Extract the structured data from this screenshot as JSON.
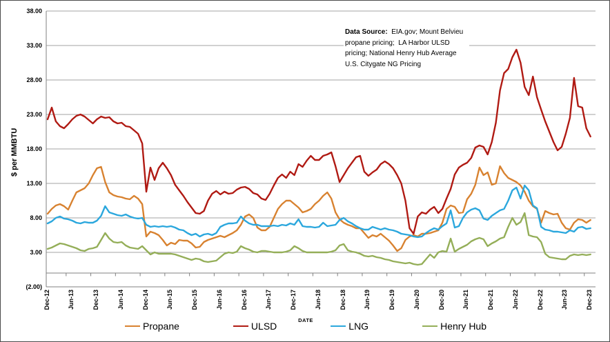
{
  "chart": {
    "y_axis_title": "$ per MMBTU",
    "x_axis_title": "DATE",
    "y_ticks": [
      {
        "value": 38,
        "label": "38.00"
      },
      {
        "value": 33,
        "label": "33.00"
      },
      {
        "value": 28,
        "label": "28.00"
      },
      {
        "value": 23,
        "label": "23.00"
      },
      {
        "value": 18,
        "label": "18.00"
      },
      {
        "value": 13,
        "label": "13.00"
      },
      {
        "value": 8,
        "label": "8.00"
      },
      {
        "value": 3,
        "label": "3.00"
      },
      {
        "value": -2,
        "label": "(2.00)"
      }
    ],
    "colors": {
      "grid": "#a3a3a3",
      "axis": "#7f7f7f",
      "border": "#4a4a4a",
      "propane": "#d88230",
      "ulsd": "#b01a13",
      "lng": "#2ba7dd",
      "henry_hub": "#94ae58"
    }
  },
  "datasource": {
    "label": "Data Source:",
    "line1_rest": "  EIA.gov; Mount Belvieu",
    "line2": "propane pricing;  LA Harbor ULSD",
    "line3": "pricing; National Henry Hub Average",
    "line4": "U.S. Citygate NG Pricing"
  },
  "chart_data": {
    "type": "line",
    "title": "",
    "xlabel": "DATE",
    "ylabel": "$ per MMBTU",
    "ylim": [
      -2,
      38
    ],
    "ytick_step": 5,
    "grid": "horizontal",
    "legend_position": "bottom",
    "x_frequency": "monthly",
    "x_start": "Dec-12",
    "x_end": "Dec-23",
    "n_points": 133,
    "categories": [
      "Dec-12",
      "Jun-13",
      "Dec-13",
      "Jun-14",
      "Dec-14",
      "Jun-15",
      "Dec-15",
      "Jun-16",
      "Dec-16",
      "Jun-17",
      "Dec-17",
      "Jun-18",
      "Dec-18",
      "Jun-19",
      "Dec-19",
      "Jun-20",
      "Dec-20",
      "Jun-21",
      "Dec-21",
      "Jun-22",
      "Dec-22",
      "Jun-23",
      "Dec-23"
    ],
    "tick_every_n_months": 6,
    "series": [
      {
        "name": "Propane",
        "color": "#d88230",
        "values": [
          8.6,
          9.3,
          9.8,
          10.0,
          9.7,
          9.2,
          10.5,
          11.7,
          12.0,
          12.3,
          13.0,
          14.2,
          15.2,
          15.4,
          13.2,
          11.7,
          11.3,
          11.1,
          11.0,
          10.8,
          10.7,
          11.2,
          10.8,
          10.0,
          5.3,
          6.0,
          5.8,
          5.5,
          4.8,
          4.0,
          4.4,
          4.2,
          4.8,
          4.7,
          4.7,
          4.3,
          3.7,
          3.8,
          4.5,
          4.8,
          5.0,
          5.2,
          5.4,
          5.2,
          5.5,
          5.8,
          6.2,
          7.0,
          8.2,
          8.5,
          8.0,
          6.6,
          6.2,
          6.2,
          6.7,
          8.0,
          9.3,
          10.0,
          10.5,
          10.5,
          10.0,
          9.5,
          8.8,
          9.0,
          9.3,
          10.0,
          10.5,
          11.2,
          11.7,
          10.8,
          8.8,
          7.8,
          7.3,
          7.0,
          6.8,
          6.5,
          6.5,
          5.8,
          5.1,
          5.5,
          5.3,
          5.7,
          5.2,
          4.7,
          4.0,
          3.2,
          3.6,
          4.8,
          5.3,
          5.5,
          5.3,
          5.7,
          5.7,
          5.8,
          6.0,
          6.2,
          7.3,
          9.3,
          9.8,
          9.6,
          8.7,
          8.8,
          10.7,
          11.5,
          12.8,
          15.3,
          14.2,
          14.6,
          12.8,
          13.0,
          15.5,
          14.5,
          13.8,
          13.5,
          13.2,
          12.7,
          11.8,
          10.5,
          9.7,
          9.3,
          7.3,
          9.0,
          8.7,
          8.5,
          8.6,
          7.3,
          6.5,
          6.3,
          7.3,
          7.8,
          7.7,
          7.3,
          7.7
        ]
      },
      {
        "name": "ULSD",
        "color": "#b01a13",
        "values": [
          22.3,
          24.0,
          22.0,
          21.3,
          21.0,
          21.6,
          22.3,
          22.8,
          23.0,
          22.7,
          22.2,
          21.7,
          22.3,
          22.7,
          22.5,
          22.6,
          22.0,
          21.7,
          21.8,
          21.3,
          21.2,
          20.7,
          20.2,
          18.8,
          11.8,
          15.3,
          13.5,
          15.2,
          16.0,
          15.2,
          14.2,
          12.8,
          12.0,
          11.2,
          10.3,
          9.5,
          8.7,
          8.6,
          9.0,
          10.5,
          11.5,
          11.9,
          11.4,
          11.8,
          11.5,
          11.6,
          12.1,
          12.4,
          12.5,
          12.2,
          11.6,
          11.4,
          10.8,
          10.6,
          11.5,
          12.7,
          13.8,
          14.3,
          13.8,
          14.7,
          14.2,
          15.8,
          15.4,
          16.3,
          17.0,
          16.4,
          16.4,
          17.0,
          17.2,
          17.5,
          15.5,
          13.2,
          14.2,
          15.2,
          16.0,
          16.8,
          17.0,
          14.7,
          14.1,
          14.6,
          15.0,
          15.8,
          16.2,
          15.8,
          15.2,
          14.2,
          13.0,
          10.5,
          6.5,
          5.7,
          8.2,
          8.8,
          8.6,
          9.2,
          9.6,
          8.7,
          9.3,
          10.8,
          12.2,
          14.3,
          15.3,
          15.7,
          16.0,
          16.7,
          18.2,
          18.5,
          18.3,
          17.2,
          19.0,
          21.8,
          26.5,
          29.0,
          29.6,
          31.3,
          32.4,
          30.5,
          27.0,
          25.8,
          28.5,
          25.5,
          23.7,
          22.0,
          20.5,
          19.0,
          17.8,
          18.3,
          20.2,
          22.5,
          28.3,
          24.2,
          24.0,
          21.0,
          19.8
        ]
      },
      {
        "name": "LNG",
        "color": "#2ba7dd",
        "values": [
          7.2,
          7.5,
          8.0,
          8.2,
          7.9,
          7.8,
          7.6,
          7.3,
          7.2,
          7.4,
          7.3,
          7.3,
          7.6,
          8.3,
          9.7,
          8.8,
          8.6,
          8.4,
          8.3,
          8.5,
          8.2,
          8.0,
          7.9,
          8.0,
          7.0,
          6.7,
          6.8,
          6.7,
          6.8,
          6.7,
          6.8,
          6.6,
          6.3,
          6.2,
          5.8,
          5.5,
          5.7,
          5.3,
          5.6,
          5.7,
          5.5,
          5.8,
          6.7,
          7.0,
          7.2,
          7.2,
          7.3,
          8.2,
          7.6,
          7.2,
          7.0,
          7.0,
          6.8,
          6.8,
          6.8,
          6.9,
          6.8,
          7.0,
          6.9,
          7.2,
          7.0,
          7.8,
          6.8,
          6.7,
          6.7,
          6.6,
          6.7,
          7.3,
          6.8,
          6.9,
          7.0,
          7.7,
          8.0,
          7.5,
          7.2,
          6.8,
          6.5,
          6.3,
          6.3,
          6.7,
          6.5,
          6.3,
          6.5,
          6.3,
          6.2,
          6.0,
          5.7,
          5.6,
          5.5,
          5.3,
          5.2,
          5.3,
          5.8,
          6.2,
          6.5,
          6.3,
          6.8,
          7.2,
          9.1,
          6.6,
          6.8,
          8.0,
          8.8,
          9.2,
          9.4,
          9.1,
          7.9,
          7.7,
          8.3,
          8.7,
          9.1,
          9.3,
          10.5,
          12.0,
          12.4,
          10.8,
          12.7,
          12.0,
          9.8,
          9.4,
          6.7,
          6.3,
          6.2,
          6.0,
          6.0,
          5.9,
          5.8,
          6.2,
          6.0,
          6.6,
          6.7,
          6.4,
          6.5
        ]
      },
      {
        "name": "Henry Hub",
        "color": "#94ae58",
        "values": [
          3.5,
          3.7,
          4.0,
          4.3,
          4.2,
          4.0,
          3.8,
          3.6,
          3.3,
          3.2,
          3.5,
          3.6,
          3.8,
          4.8,
          5.8,
          5.0,
          4.5,
          4.4,
          4.5,
          4.0,
          3.7,
          3.6,
          3.5,
          3.9,
          3.3,
          2.7,
          3.0,
          2.8,
          2.8,
          2.8,
          2.8,
          2.7,
          2.5,
          2.3,
          2.1,
          1.9,
          2.1,
          2.0,
          1.7,
          1.6,
          1.7,
          1.8,
          2.3,
          2.8,
          3.0,
          2.9,
          3.1,
          3.9,
          3.6,
          3.4,
          3.1,
          3.0,
          3.2,
          3.2,
          3.1,
          3.0,
          3.0,
          3.0,
          3.1,
          3.3,
          3.9,
          3.6,
          3.2,
          3.0,
          3.0,
          3.0,
          3.0,
          3.0,
          3.0,
          3.1,
          3.3,
          4.0,
          4.2,
          3.3,
          3.1,
          3.0,
          2.8,
          2.5,
          2.4,
          2.5,
          2.3,
          2.2,
          2.0,
          1.9,
          1.7,
          1.6,
          1.5,
          1.4,
          1.5,
          1.3,
          1.2,
          1.3,
          2.0,
          2.7,
          2.2,
          3.0,
          3.2,
          3.1,
          5.0,
          3.1,
          3.5,
          3.8,
          4.1,
          4.6,
          4.9,
          5.1,
          4.9,
          3.9,
          4.3,
          4.6,
          5.0,
          5.2,
          6.7,
          8.0,
          7.0,
          7.4,
          8.7,
          5.5,
          5.3,
          5.2,
          4.5,
          2.8,
          2.3,
          2.2,
          2.1,
          2.0,
          2.0,
          2.5,
          2.7,
          2.6,
          2.7,
          2.6,
          2.7
        ]
      }
    ]
  }
}
